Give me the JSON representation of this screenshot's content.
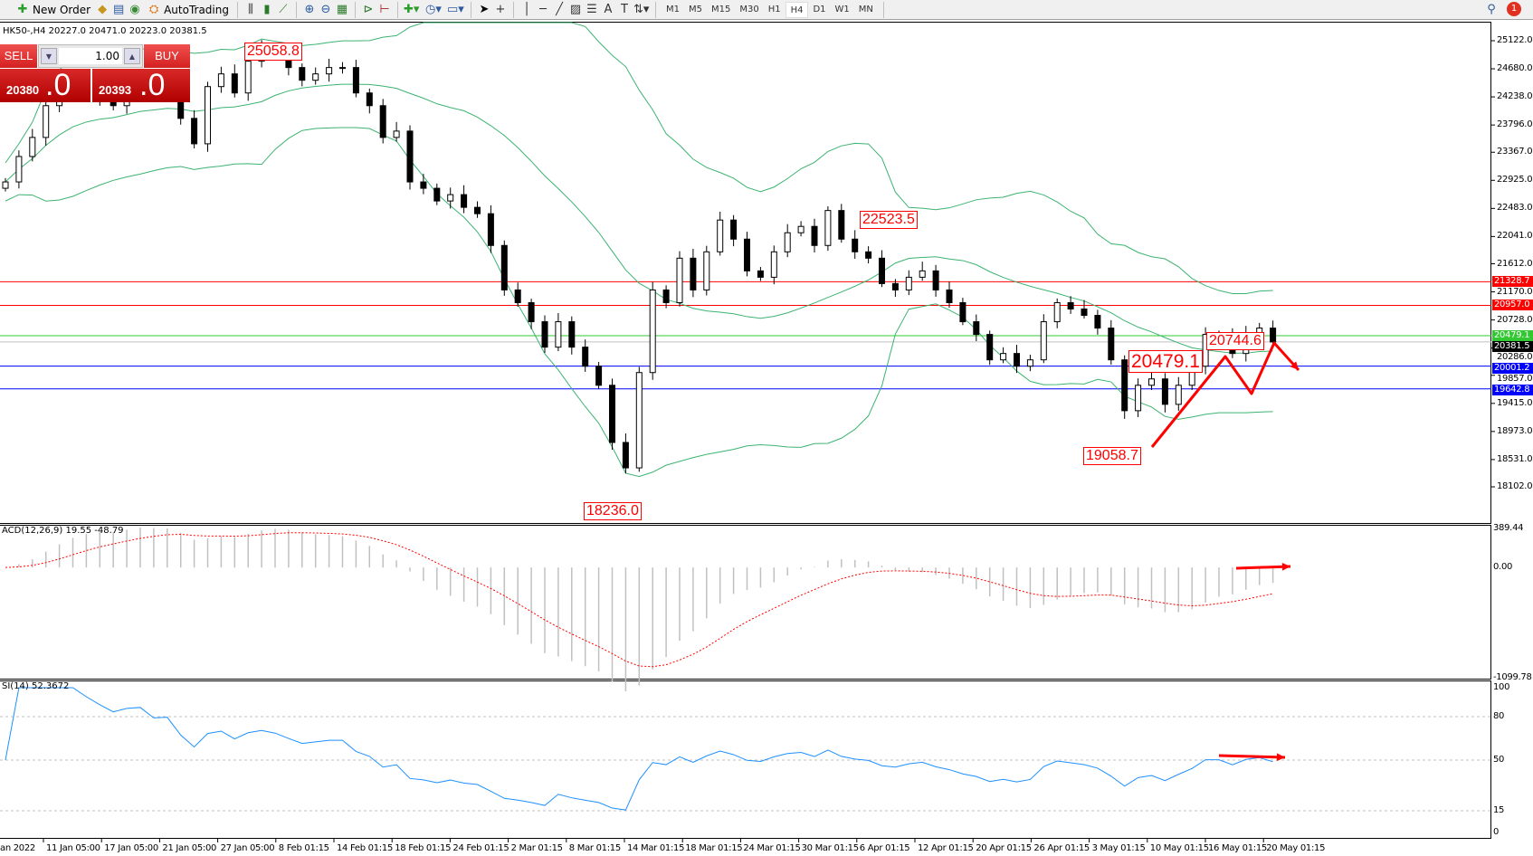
{
  "toolbar": {
    "new_order": "New Order",
    "autotrading": "AutoTrading",
    "timeframes": [
      "M1",
      "M5",
      "M15",
      "M30",
      "H1",
      "H4",
      "D1",
      "W1",
      "MN"
    ],
    "active_timeframe": "H4",
    "notification_count": "1",
    "text_tool": "A",
    "icons": [
      "new-order-icon",
      "metaeditor-icon",
      "history-icon",
      "signals-icon",
      "autotrading-icon",
      "bar-chart-icon",
      "candlestick-icon",
      "line-chart-icon",
      "zoom-in-icon",
      "zoom-out-icon",
      "tile-windows-icon",
      "autoscroll-icon",
      "chart-shift-icon",
      "indicators-icon",
      "periods-icon",
      "templates-icon",
      "cursor-icon",
      "crosshair-icon",
      "vertical-line-icon",
      "horizontal-line-icon",
      "trendline-icon",
      "equidistant-channel-icon",
      "fibonacci-icon",
      "text-icon",
      "text-label-icon",
      "arrows-icon",
      "search-icon",
      "notification-icon"
    ]
  },
  "chart": {
    "header": "HK50-,H4  20227.0 20471.0 20223.0 20381.5",
    "trade_panel": {
      "sell_label": "SELL",
      "buy_label": "BUY",
      "volume": "1.00",
      "sell_price_main": "20380",
      "sell_price_big": ".0",
      "buy_price_main": "20393",
      "buy_price_big": ".0"
    },
    "annotations": [
      "25058.8",
      "22523.5",
      "18236.0",
      "20479.1",
      "20744.6",
      "19058.7"
    ],
    "horizontal_lines": [
      {
        "price": "21328.7",
        "color": "#ff0000"
      },
      {
        "price": "20957.0",
        "color": "#ff0000"
      },
      {
        "price": "20479.1",
        "color": "#32c832"
      },
      {
        "price": "20381.5",
        "color": "#000000"
      },
      {
        "price": "20001.2",
        "color": "#0000ff"
      },
      {
        "price": "19642.8",
        "color": "#0000ff"
      }
    ],
    "macd_title": "ACD(12,26,9) 19.55 -48.79",
    "rsi_title": "SI(14) 52.3672",
    "colors": {
      "bands": "#3cb371",
      "macd_signal": "#ff0000",
      "macd_hist": "#c0c0c0",
      "rsi": "#1e90ff",
      "arrows": "#ff0000"
    }
  },
  "chart_data": [
    {
      "type": "candlestick",
      "title": "HK50-,H4",
      "ylim": [
        18102.0,
        25122.0
      ],
      "y_ticks": [
        "25122.0",
        "24680.0",
        "24238.0",
        "23796.0",
        "23367.0",
        "22925.0",
        "22483.0",
        "22041.0",
        "21612.0",
        "21170.0",
        "20728.0",
        "20286.0",
        "19857.0",
        "19415.0",
        "18973.0",
        "18531.0",
        "18102.0"
      ],
      "x_ticks": [
        "an 2022",
        "11 Jan 05:00",
        "17 Jan 05:00",
        "21 Jan 05:00",
        "27 Jan 05:00",
        "8 Feb 01:15",
        "14 Feb 01:15",
        "18 Feb 01:15",
        "24 Feb 01:15",
        "2 Mar 01:15",
        "8 Mar 01:15",
        "14 Mar 01:15",
        "18 Mar 01:15",
        "24 Mar 01:15",
        "30 Mar 01:15",
        "6 Apr 01:15",
        "12 Apr 01:15",
        "20 Apr 01:15",
        "26 Apr 01:15",
        "3 May 01:15",
        "10 May 01:15",
        "16 May 01:15",
        "20 May 01:15"
      ],
      "closes": [
        22900,
        23300,
        23600,
        24100,
        24300,
        24400,
        24300,
        24200,
        24100,
        24400,
        24500,
        24300,
        24350,
        23900,
        23500,
        24400,
        24600,
        24300,
        24800,
        25000,
        24900,
        24700,
        24500,
        24600,
        24700,
        24700,
        24300,
        24100,
        23600,
        23700,
        22900,
        22800,
        22600,
        22700,
        22500,
        22400,
        21900,
        21200,
        21000,
        20700,
        20300,
        20700,
        20300,
        20000,
        19700,
        18800,
        18400,
        19900,
        21200,
        21000,
        21700,
        21200,
        21800,
        22300,
        22000,
        21500,
        21400,
        21800,
        22100,
        22200,
        21900,
        22450,
        22000,
        21800,
        21700,
        21300,
        21200,
        21400,
        21500,
        21200,
        21000,
        20700,
        20500,
        20100,
        20200,
        20000,
        20100,
        20700,
        21000,
        20900,
        20800,
        20600,
        20100,
        19300,
        19700,
        19800,
        19400,
        19700,
        20000,
        20500,
        20500,
        20200,
        20500,
        20600,
        20381.5
      ],
      "overlays": [
        "Bollinger Bands"
      ]
    },
    {
      "type": "bar",
      "title": "ACD(12,26,9) 19.55 -48.79",
      "ylim": [
        -1099.78,
        389.44
      ],
      "y_ticks": [
        "389.44",
        "0.00",
        "-1099.78"
      ]
    },
    {
      "type": "line",
      "title": "SI(14) 52.3672",
      "ylim": [
        0,
        100
      ],
      "y_ticks": [
        "100",
        "80",
        "50",
        "15",
        "0"
      ],
      "levels": [
        80,
        50,
        15
      ]
    }
  ]
}
